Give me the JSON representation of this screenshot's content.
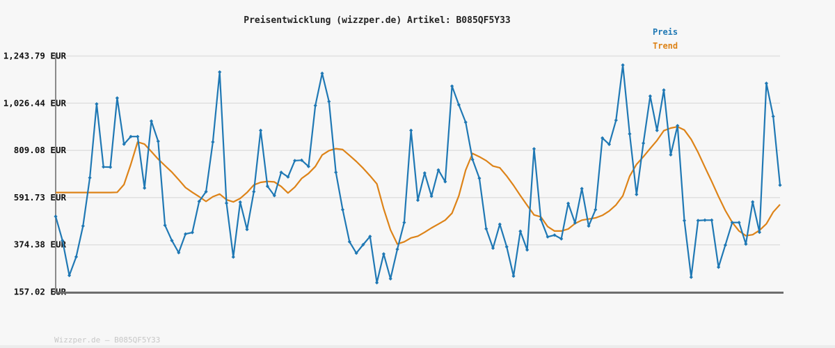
{
  "title": "Preisentwicklung (wizzper.de) Artikel: B085QF5Y33",
  "footer": "Wizzper.de — B085QF5Y33",
  "legend": [
    {
      "label": "Preis",
      "color": "#1f78b4"
    },
    {
      "label": "Trend",
      "color": "#dd8318"
    }
  ],
  "colors": {
    "background": "#f7f7f7",
    "grid": "#e0e0e0",
    "axis_left": "#8a8a8a",
    "axis_bottom": "#6e6e6e",
    "price": "#1f78b4",
    "trend": "#dd8318",
    "tick_text": "#111111",
    "title_text": "#222222",
    "footer_text": "#c7c7c7"
  },
  "chart_data": {
    "type": "line",
    "title": "Preisentwicklung (wizzper.de) Artikel: B085QF5Y33",
    "xlabel": "",
    "ylabel": "EUR",
    "x_axis": {
      "labels_visible": false,
      "points": 107
    },
    "ylim": [
      157.02,
      1243.79
    ],
    "grid": true,
    "legend_position": "top-right",
    "y_ticks": [
      {
        "value": 1243.79,
        "label": "1,243.79 EUR"
      },
      {
        "value": 1026.44,
        "label": "1,026.44 EUR"
      },
      {
        "value": 809.08,
        "label": "809.08 EUR"
      },
      {
        "value": 591.73,
        "label": "591.73 EUR"
      },
      {
        "value": 374.38,
        "label": "374.38 EUR"
      },
      {
        "value": 157.02,
        "label": "157.02 EUR"
      }
    ],
    "series": [
      {
        "name": "Preis",
        "color": "#1f78b4",
        "marker": "diamond",
        "values": [
          505,
          394,
          233,
          319,
          461,
          683,
          1023,
          733,
          732,
          1050,
          838,
          873,
          873,
          636,
          944,
          851,
          464,
          394,
          338,
          424,
          431,
          574,
          619,
          848,
          1170,
          566,
          318,
          571,
          445,
          619,
          901,
          644,
          601,
          708,
          687,
          762,
          764,
          735,
          1016,
          1164,
          1034,
          708,
          536,
          388,
          336,
          375,
          413,
          200,
          332,
          218,
          354,
          477,
          901,
          580,
          705,
          598,
          719,
          665,
          1105,
          1019,
          939,
          767,
          681,
          448,
          359,
          469,
          365,
          230,
          437,
          351,
          816,
          491,
          411,
          419,
          402,
          565,
          475,
          633,
          461,
          536,
          866,
          837,
          948,
          1202,
          885,
          606,
          842,
          1059,
          901,
          1087,
          789,
          923,
          486,
          225,
          486,
          488,
          488,
          271,
          373,
          477,
          477,
          378,
          572,
          432,
          1118,
          966,
          649
        ]
      },
      {
        "name": "Trend",
        "color": "#dd8318",
        "marker": "none",
        "values": [
          615,
          615,
          615,
          615,
          615,
          615,
          615,
          615,
          615,
          616,
          652,
          745,
          848,
          838,
          804,
          769,
          739,
          709,
          674,
          638,
          616,
          596,
          574,
          596,
          608,
          582,
          572,
          588,
          615,
          650,
          662,
          666,
          664,
          643,
          613,
          640,
          680,
          703,
          735,
          788,
          808,
          817,
          813,
          786,
          758,
          727,
          692,
          655,
          540,
          443,
          378,
          388,
          406,
          414,
          432,
          452,
          470,
          488,
          520,
          600,
          718,
          795,
          780,
          762,
          737,
          729,
          691,
          648,
          601,
          556,
          512,
          503,
          458,
          438,
          438,
          447,
          472,
          488,
          493,
          498,
          510,
          530,
          558,
          600,
          690,
          745,
          780,
          818,
          855,
          900,
          912,
          918,
          903,
          860,
          800,
          732,
          666,
          597,
          532,
          478,
          438,
          416,
          421,
          441,
          471,
          525,
          560
        ]
      }
    ]
  }
}
